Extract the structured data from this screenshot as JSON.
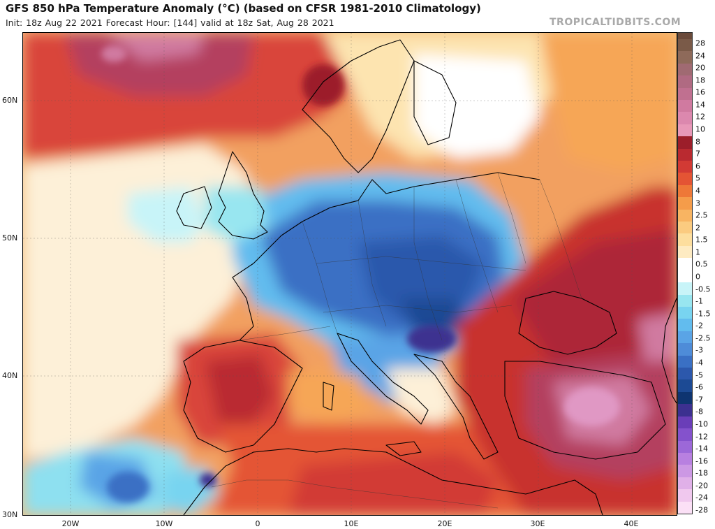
{
  "header": {
    "title": "GFS 850 hPa Temperature Anomaly (°C) (based on CFSR 1981-2010 Climatology)",
    "subtitle": "Init: 18z Aug 22 2021   Forecast Hour: [144]   valid at 18z Sat, Aug 28 2021",
    "credit": "TROPICALTIDBITS.COM"
  },
  "map": {
    "region": "Europe / Mediterranean",
    "lat_labels": [
      "60N",
      "50N",
      "40N",
      "30N"
    ],
    "lon_labels": [
      "20W",
      "10W",
      "0",
      "10E",
      "20E",
      "30E",
      "40E"
    ],
    "lat_values": [
      60,
      50,
      40,
      30
    ],
    "lon_values": [
      -20,
      -10,
      0,
      10,
      20,
      30,
      40
    ],
    "extent": {
      "lon_min": -25,
      "lon_max": 45,
      "lat_min": 30,
      "lat_max": 65
    }
  },
  "colorbar": {
    "labels": [
      "28",
      "24",
      "20",
      "18",
      "16",
      "14",
      "12",
      "10",
      "8",
      "7",
      "6",
      "5",
      "4",
      "3",
      "2.5",
      "2",
      "1.5",
      "1",
      "0.5",
      "0",
      "-0.5",
      "-1",
      "-1.5",
      "-2",
      "-2.5",
      "-3",
      "-4",
      "-5",
      "-6",
      "-7",
      "-8",
      "-10",
      "-12",
      "-14",
      "-16",
      "-18",
      "-20",
      "-24",
      "-28"
    ],
    "colors": [
      "#7a5a48",
      "#8e6a5a",
      "#a06a72",
      "#b06a82",
      "#c07090",
      "#d07aa0",
      "#dc88ae",
      "#e898b8",
      "#9c1e2a",
      "#ba2a30",
      "#d23a34",
      "#e45434",
      "#ee7838",
      "#f59c4a",
      "#f8b462",
      "#fbcb80",
      "#fdde9e",
      "#feebc2",
      "#ffffff",
      "#ffffff",
      "#c8f4f8",
      "#98e6f0",
      "#78d4f0",
      "#62bcee",
      "#5aa4e6",
      "#4e8cd8",
      "#3a70c4",
      "#2c58ac",
      "#1c4a94",
      "#0e3470",
      "#3c3090",
      "#6a3eb8",
      "#8452cc",
      "#9c68d8",
      "#b880e0",
      "#cc98e4",
      "#e0b0e8",
      "#f0c8ee",
      "#fbe0f6"
    ]
  }
}
